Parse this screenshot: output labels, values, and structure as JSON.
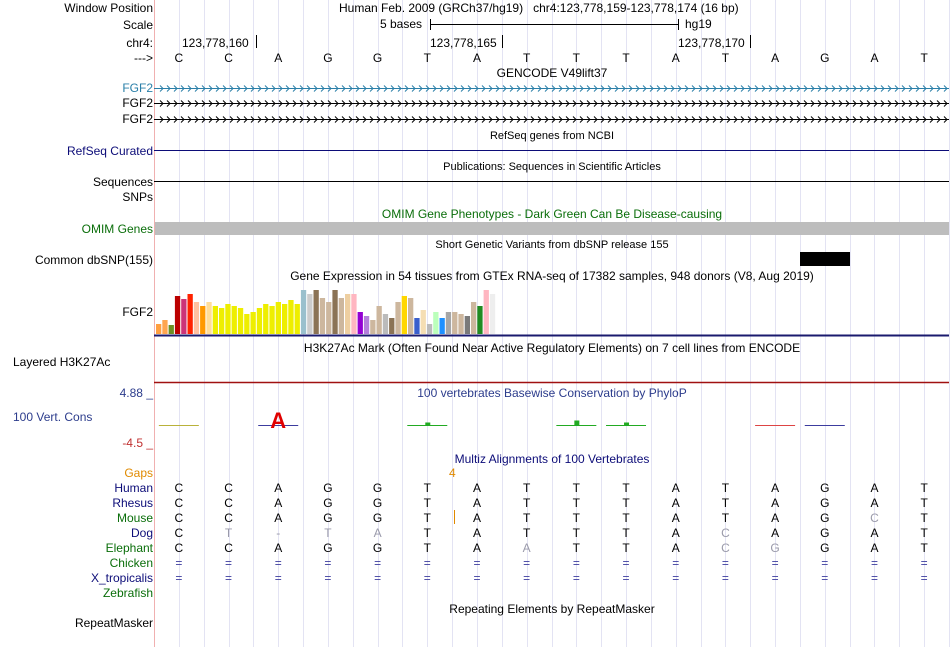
{
  "ruler": {
    "window_position_label": "Window Position",
    "scale_label": "Scale",
    "chrom_label": "chr4:",
    "strand_label": "--->",
    "assembly": "Human Feb. 2009 (GRCh37/hg19)",
    "position": "chr4:123,778,159-123,778,174 (16 bp)",
    "scale_text": "5 bases",
    "scale_db": "hg19",
    "ticks": [
      "123,778,160",
      "123,778,165",
      "123,778,170"
    ],
    "bases": [
      "C",
      "C",
      "A",
      "G",
      "G",
      "T",
      "A",
      "T",
      "T",
      "T",
      "A",
      "T",
      "A",
      "G",
      "A",
      "T"
    ]
  },
  "gencode": {
    "title": "GENCODE V49lift37",
    "genes": [
      "FGF2",
      "FGF2",
      "FGF2"
    ],
    "gene_colors": [
      "#2a7fa8",
      "#000000",
      "#000000"
    ]
  },
  "refseq": {
    "title": "RefSeq genes from NCBI",
    "label": "RefSeq Curated",
    "color": "#0c0c78"
  },
  "publications": {
    "title": "Publications: Sequences in Scientific Articles",
    "label": "Sequences"
  },
  "snps_label": "SNPs",
  "omim": {
    "title": "OMIM Gene Phenotypes - Dark Green Can Be Disease-causing",
    "label": "OMIM Genes",
    "color": "#0a6e0a"
  },
  "dbsnp": {
    "title": "Short Genetic Variants from dbSNP release 155",
    "label": "Common dbSNP(155)"
  },
  "gtex": {
    "title": "Gene Expression in 54 tissues from GTEx RNA-seq of 17382 samples, 948 donors (V8, Aug 2019)",
    "label": "FGF2",
    "colors": [
      "#ff9f40",
      "#ffa54f",
      "#6b8e23",
      "#bb0000",
      "#cc3377",
      "#ff2200",
      "#ffc0a0",
      "#ff9900",
      "#ffdd99",
      "#eeee00",
      "#eeee00",
      "#eeee00",
      "#eeee00",
      "#eeee00",
      "#eeee00",
      "#eeee00",
      "#eeee00",
      "#eeee00",
      "#eeee00",
      "#eeee00",
      "#eeee00",
      "#eeee00",
      "#eeee00",
      "#9ac0cd",
      "#cccccc",
      "#8b7355",
      "#cdb79e",
      "#cdb79e",
      "#8b7355",
      "#cdb79e",
      "#eecfa1",
      "#ffb6c1",
      "#9400d3",
      "#b57edc",
      "#cdb79e",
      "#cdb79e",
      "#bbbbbb",
      "#8b7355",
      "#cdb79e",
      "#ffd700",
      "#cdb79e",
      "#3a5fcd",
      "#f5deb3",
      "#bbbbbb",
      "#bbffbb",
      "#1e90ff",
      "#a6a6a6",
      "#cdb79e",
      "#cdb79e",
      "#7a7a7a",
      "#cdb79e",
      "#228b22",
      "#ffb6c1",
      "#eeeeee"
    ],
    "values": [
      10,
      14,
      9,
      38,
      35,
      40,
      32,
      28,
      32,
      28,
      26,
      30,
      28,
      26,
      20,
      22,
      26,
      30,
      28,
      32,
      30,
      34,
      30,
      44,
      40,
      44,
      36,
      32,
      44,
      36,
      40,
      40,
      22,
      18,
      14,
      28,
      20,
      16,
      32,
      38,
      36,
      16,
      24,
      10,
      22,
      16,
      22,
      22,
      20,
      18,
      32,
      28,
      44,
      40
    ]
  },
  "h3k27ac": {
    "title": "H3K27Ac Mark (Often Found Near Active Regulatory Elements) on 7 cell lines from ENCODE",
    "label": "Layered H3K27Ac",
    "color": "#a01010"
  },
  "phylop": {
    "title": "100 vertebrates Basewise Conservation by PhyloP",
    "label": "100 Vert. Cons",
    "ymax": "4.88 _",
    "ymin": "-4.5 _",
    "color": "#2c3c8c"
  },
  "multiz": {
    "title": "Multiz Alignments of 100 Vertebrates",
    "gaps_label": "Gaps",
    "gap_count": "4",
    "gaps_color": "#e08a00",
    "species": [
      {
        "name": "Human",
        "color": "#0c0c78",
        "seq": [
          "C",
          "C",
          "A",
          "G",
          "G",
          "T",
          "A",
          "T",
          "T",
          "T",
          "A",
          "T",
          "A",
          "G",
          "A",
          "T"
        ]
      },
      {
        "name": "Rhesus",
        "color": "#0c0c78",
        "seq": [
          "C",
          "C",
          "A",
          "G",
          "G",
          "T",
          "A",
          "T",
          "T",
          "T",
          "A",
          "T",
          "A",
          "G",
          "A",
          "T"
        ]
      },
      {
        "name": "Mouse",
        "color": "#0a6e0a",
        "seq": [
          "C",
          "C",
          "A",
          "G",
          "G",
          "T",
          "A",
          "T",
          "T",
          "T",
          "A",
          "T",
          "A",
          "G",
          "C",
          "T"
        ]
      },
      {
        "name": "Dog",
        "color": "#0c0c78",
        "seq": [
          "C",
          "T",
          "-",
          "T",
          "A",
          "T",
          "A",
          "T",
          "T",
          "T",
          "A",
          "C",
          "A",
          "G",
          "A",
          "T"
        ]
      },
      {
        "name": "Elephant",
        "color": "#0a6e0a",
        "seq": [
          "C",
          "C",
          "A",
          "G",
          "G",
          "T",
          "A",
          "A",
          "T",
          "T",
          "A",
          "C",
          "G",
          "G",
          "A",
          "T"
        ]
      },
      {
        "name": "Chicken",
        "color": "#0a6e0a",
        "seq": [
          "=",
          "=",
          "=",
          "=",
          "=",
          "=",
          "=",
          "=",
          "=",
          "=",
          "=",
          "=",
          "=",
          "=",
          "=",
          "="
        ]
      },
      {
        "name": "X_tropicalis",
        "color": "#0c0c78",
        "seq": [
          "=",
          "=",
          "=",
          "=",
          "=",
          "=",
          "=",
          "=",
          "=",
          "=",
          "=",
          "=",
          "=",
          "=",
          "=",
          "="
        ]
      },
      {
        "name": "Zebrafish",
        "color": "#0a6e0a",
        "seq": []
      }
    ]
  },
  "repeatmasker": {
    "title": "Repeating Elements by RepeatMasker",
    "label": "RepeatMasker"
  }
}
